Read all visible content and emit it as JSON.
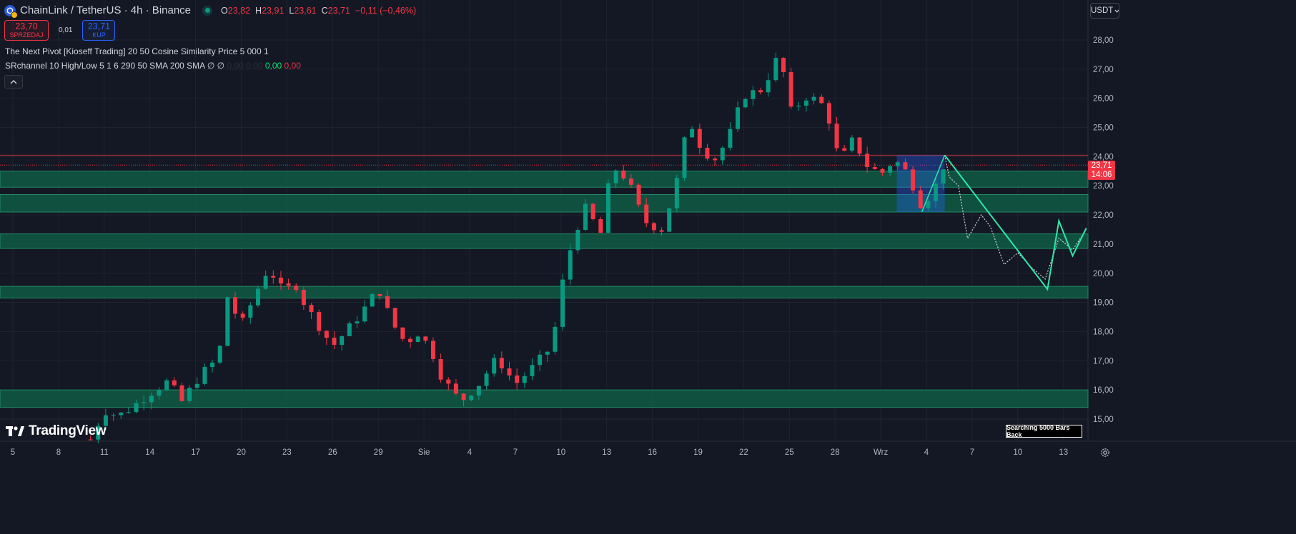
{
  "header": {
    "symbol_title": "ChainLink / TetherUS · 4h · Binance",
    "ohlc": [
      {
        "key": "O",
        "value": "23,82"
      },
      {
        "key": "H",
        "value": "23,91"
      },
      {
        "key": "L",
        "value": "23,61"
      },
      {
        "key": "C",
        "value": "23,71"
      },
      {
        "key": "",
        "value": "−0,11 (−0,46%)"
      }
    ]
  },
  "trade": {
    "sell_price": "23,70",
    "sell_label": "SPRZEDAJ",
    "spread": "0,01",
    "buy_price": "23,71",
    "buy_label": "KUP"
  },
  "indicators": {
    "line1": "The Next Pivot [Kioseff Trading] 20 50 Cosine Similarity Price 5 000 1",
    "line2_text": "SRchannel 10 High/Low 5 1 6 290 50 SMA 200 SMA",
    "line2_symbols": "∅ ∅",
    "line2_dim": "0,00 0,00",
    "line2_green": "0,00",
    "line2_red": "0,00"
  },
  "currency_button": "USDT",
  "last_price_badge": {
    "price": "23,71",
    "countdown": "14:06"
  },
  "branding": "TradingView",
  "search_status": "Searching 5000 Bars Back",
  "colors": {
    "background": "#141824",
    "up": "#089981",
    "down": "#f23645",
    "zone": "#0f5a44",
    "projection": "#2ee6a8"
  },
  "y_axis_labels": [
    "28,00",
    "27,00",
    "26,00",
    "25,00",
    "24,00",
    "23,00",
    "22,00",
    "21,00",
    "20,00",
    "19,00",
    "18,00",
    "17,00",
    "16,00",
    "15,00"
  ],
  "x_axis_labels": [
    "5",
    "8",
    "11",
    "14",
    "17",
    "20",
    "23",
    "26",
    "29",
    "Sie",
    "4",
    "7",
    "10",
    "13",
    "16",
    "19",
    "22",
    "25",
    "28",
    "Wrz",
    "4",
    "7",
    "10",
    "13"
  ],
  "chart_data": {
    "type": "candlestick",
    "title": "ChainLink / TetherUS · 4h · Binance",
    "ylim": [
      14.5,
      28.6
    ],
    "sr_zones": [
      [
        22.95,
        23.5
      ],
      [
        22.1,
        22.7
      ],
      [
        20.85,
        21.35
      ],
      [
        19.15,
        19.55
      ],
      [
        15.4,
        16.0
      ]
    ],
    "resistance_line": 24.05,
    "current_price_line": 23.71,
    "highlight_box": {
      "x": [
        19.35,
        20.4
      ],
      "y": [
        22.1,
        24.05
      ]
    },
    "price_path": [
      [
        1.7,
        14.3
      ],
      [
        2.0,
        15.3
      ],
      [
        2.3,
        15.1
      ],
      [
        2.6,
        15.4
      ],
      [
        3.0,
        15.9
      ],
      [
        3.4,
        16.3
      ],
      [
        3.7,
        15.6
      ],
      [
        4.1,
        16.5
      ],
      [
        4.5,
        17.1
      ],
      [
        4.7,
        19.2
      ],
      [
        5.0,
        18.2
      ],
      [
        5.4,
        19.6
      ],
      [
        5.6,
        20.2
      ],
      [
        5.9,
        19.4
      ],
      [
        6.2,
        19.6
      ],
      [
        6.4,
        18.9
      ],
      [
        6.7,
        18.2
      ],
      [
        7.0,
        17.5
      ],
      [
        7.4,
        18.2
      ],
      [
        7.8,
        19.0
      ],
      [
        8.0,
        19.5
      ],
      [
        8.3,
        18.3
      ],
      [
        8.6,
        17.6
      ],
      [
        8.9,
        18.0
      ],
      [
        9.2,
        17.2
      ],
      [
        9.4,
        16.4
      ],
      [
        9.8,
        15.6
      ],
      [
        10.2,
        16.2
      ],
      [
        10.6,
        17.1
      ],
      [
        11.0,
        16.2
      ],
      [
        11.4,
        16.8
      ],
      [
        11.8,
        17.5
      ],
      [
        12.1,
        20.3
      ],
      [
        12.5,
        22.3
      ],
      [
        12.9,
        21.3
      ],
      [
        13.1,
        23.7
      ],
      [
        13.4,
        23.3
      ],
      [
        13.6,
        22.7
      ],
      [
        13.8,
        21.8
      ],
      [
        14.2,
        21.5
      ],
      [
        14.5,
        22.9
      ],
      [
        14.8,
        25.3
      ],
      [
        15.1,
        24.2
      ],
      [
        15.4,
        23.9
      ],
      [
        15.7,
        24.8
      ],
      [
        16.0,
        26.1
      ],
      [
        16.4,
        26.3
      ],
      [
        16.8,
        27.6
      ],
      [
        17.0,
        25.5
      ],
      [
        17.4,
        26.1
      ],
      [
        17.8,
        25.7
      ],
      [
        18.1,
        23.8
      ],
      [
        18.4,
        24.6
      ],
      [
        18.7,
        23.7
      ],
      [
        19.0,
        23.4
      ],
      [
        19.3,
        23.9
      ],
      [
        19.6,
        23.4
      ],
      [
        19.9,
        22.3
      ],
      [
        20.2,
        23.0
      ],
      [
        20.4,
        23.8
      ]
    ],
    "projection_line": [
      [
        20.4,
        24.05
      ],
      [
        22.65,
        19.45
      ],
      [
        22.9,
        21.8
      ],
      [
        23.2,
        20.6
      ],
      [
        23.5,
        21.55
      ]
    ],
    "projection_dotted": [
      [
        20.4,
        24.05
      ],
      [
        20.5,
        23.3
      ],
      [
        20.7,
        23.0
      ],
      [
        20.9,
        21.2
      ],
      [
        21.2,
        22.0
      ],
      [
        21.4,
        21.6
      ],
      [
        21.7,
        20.3
      ],
      [
        22.0,
        20.7
      ],
      [
        22.3,
        20.2
      ],
      [
        22.6,
        19.8
      ],
      [
        22.9,
        21.2
      ],
      [
        23.2,
        20.8
      ],
      [
        23.5,
        21.5
      ]
    ]
  }
}
